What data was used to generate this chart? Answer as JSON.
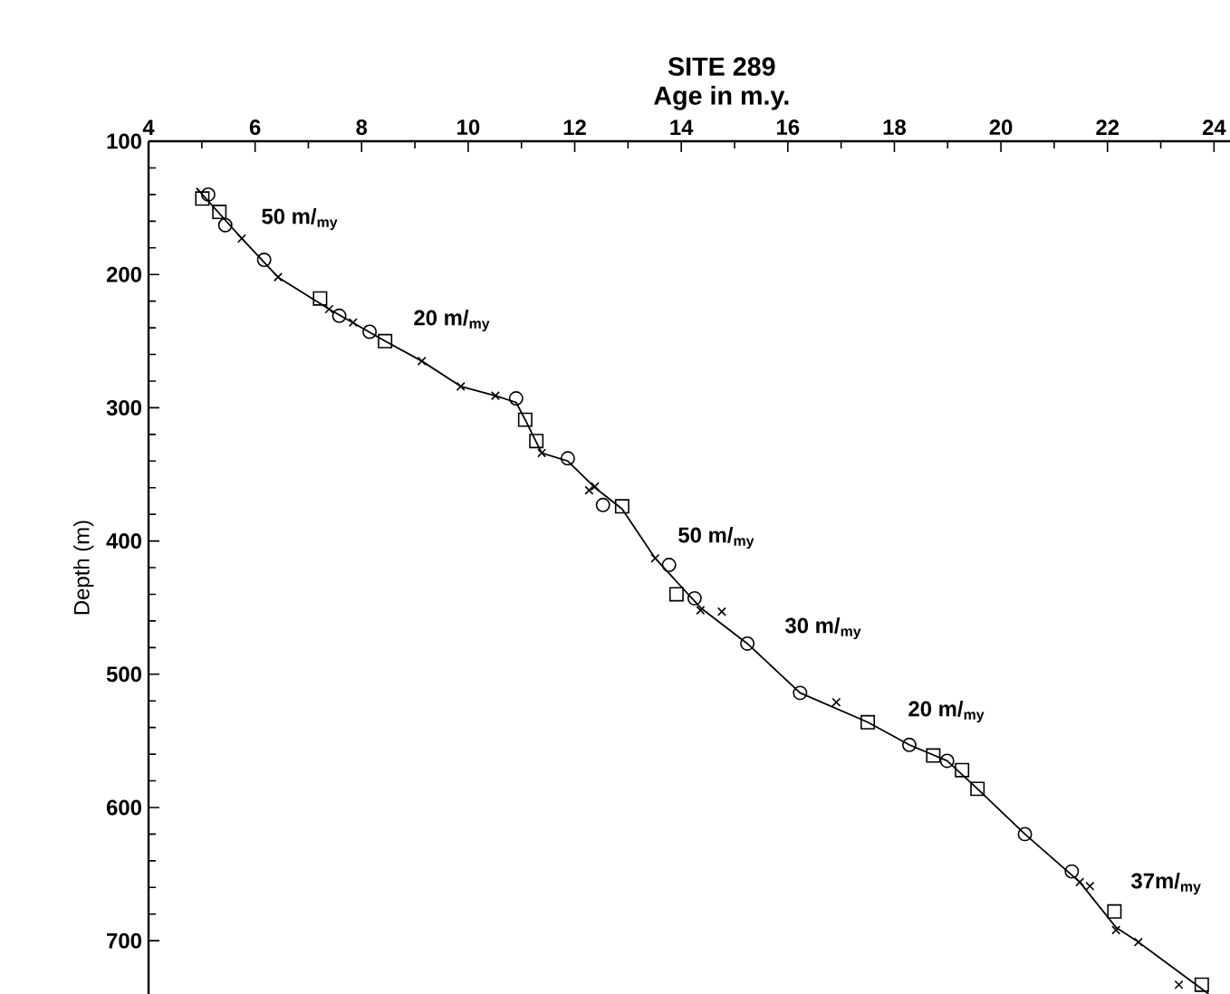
{
  "chart_data": {
    "type": "scatter",
    "title": "SITE 289",
    "xlabel": "Age in m.y.",
    "ylabel": "Depth (m)",
    "xlim": [
      4,
      24.3
    ],
    "xticks": [
      4,
      6,
      8,
      10,
      12,
      14,
      16,
      18,
      20,
      22,
      24
    ],
    "ylim": [
      740,
      100
    ],
    "yticks": [
      100,
      200,
      300,
      400,
      500,
      600,
      700
    ],
    "series": [
      {
        "color": "#000000",
        "marker": "square",
        "x": [
          5.01,
          5.33,
          7.22,
          8.44,
          11.07,
          11.28,
          12.89,
          13.91,
          17.5,
          18.73,
          19.27,
          19.56,
          22.13,
          23.77
        ],
        "values": [
          143,
          153,
          218,
          250,
          309,
          325,
          374,
          440,
          536,
          561,
          572,
          586,
          678,
          733
        ]
      },
      {
        "color": "#000000",
        "marker": "circle",
        "x": [
          5.12,
          5.44,
          6.17,
          7.58,
          8.15,
          10.9,
          11.87,
          12.53,
          13.77,
          14.25,
          15.24,
          16.23,
          18.28,
          18.99,
          20.45,
          21.33
        ],
        "values": [
          140,
          163,
          189,
          231,
          243,
          293,
          338,
          373,
          418,
          443,
          477,
          514,
          553,
          565,
          620,
          648
        ]
      },
      {
        "color": "#000000",
        "marker": "cross",
        "x": [
          5.75,
          6.43,
          7.39,
          7.84,
          9.13,
          9.86,
          10.51,
          11.38,
          12.27,
          12.38,
          13.51,
          14.36,
          14.76,
          16.91,
          21.48,
          21.67,
          22.16,
          22.58,
          23.34
        ],
        "values": [
          173,
          202,
          226,
          236,
          265,
          284,
          291,
          334,
          362,
          359,
          413,
          452,
          453,
          521,
          656,
          659,
          692,
          701,
          733
        ]
      },
      {
        "type": "line",
        "color": "#000000",
        "marker": "none",
        "line_style": "solid",
        "x": [
          4.9,
          5.75,
          6.43,
          7.39,
          8.44,
          9.13,
          9.86,
          10.51,
          10.9,
          11.07,
          11.38,
          11.87,
          12.38,
          12.89,
          13.51,
          14.36,
          15.24,
          16.23,
          17.5,
          18.28,
          18.99,
          19.56,
          20.45,
          21.48,
          22.16,
          22.58,
          23.9
        ],
        "values": [
          135,
          173,
          202,
          226,
          250,
          265,
          284,
          291,
          296,
          309,
          334,
          340,
          360,
          376,
          413,
          450,
          477,
          514,
          536,
          553,
          565,
          586,
          620,
          656,
          690,
          701,
          740
        ]
      }
    ],
    "annotations": [
      "50 m/$_{my}$",
      "20 m/$_{my}$",
      "50 m/$_{my}$",
      "30 m/$_{my}$",
      "20 m/$_{my}$",
      "37m/$_{my}$"
    ]
  }
}
